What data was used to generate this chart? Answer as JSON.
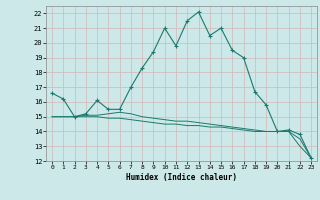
{
  "xlabel": "Humidex (Indice chaleur)",
  "xlim": [
    -0.5,
    23.5
  ],
  "ylim": [
    12,
    22.5
  ],
  "yticks": [
    12,
    13,
    14,
    15,
    16,
    17,
    18,
    19,
    20,
    21,
    22
  ],
  "xticks": [
    0,
    1,
    2,
    3,
    4,
    5,
    6,
    7,
    8,
    9,
    10,
    11,
    12,
    13,
    14,
    15,
    16,
    17,
    18,
    19,
    20,
    21,
    22,
    23
  ],
  "bg_color": "#cce8e8",
  "line_color": "#1a7a6e",
  "grid_color": "#c0d8d8",
  "line1_x": [
    0,
    1,
    2,
    3,
    4,
    5,
    6,
    7,
    8,
    9,
    10,
    11,
    12,
    13,
    14,
    15,
    16,
    17,
    18,
    19,
    20,
    21,
    22,
    23
  ],
  "line1_y": [
    16.6,
    16.2,
    15.0,
    15.2,
    16.1,
    15.5,
    15.5,
    17.0,
    18.3,
    19.4,
    21.0,
    19.8,
    21.5,
    22.1,
    20.5,
    21.0,
    19.5,
    19.0,
    16.7,
    15.8,
    14.0,
    14.1,
    13.8,
    12.2
  ],
  "line2_x": [
    0,
    1,
    2,
    3,
    4,
    5,
    6,
    7,
    8,
    9,
    10,
    11,
    12,
    13,
    14,
    15,
    16,
    17,
    18,
    19,
    20,
    21,
    22,
    23
  ],
  "line2_y": [
    15.0,
    15.0,
    15.0,
    15.0,
    15.0,
    14.9,
    14.9,
    14.8,
    14.7,
    14.6,
    14.5,
    14.5,
    14.4,
    14.4,
    14.3,
    14.3,
    14.2,
    14.1,
    14.0,
    14.0,
    14.0,
    14.0,
    13.0,
    12.2
  ],
  "line3_x": [
    0,
    1,
    2,
    3,
    4,
    5,
    6,
    7,
    8,
    9,
    10,
    11,
    12,
    13,
    14,
    15,
    16,
    17,
    18,
    19,
    20,
    21,
    22,
    23
  ],
  "line3_y": [
    15.0,
    15.0,
    15.0,
    15.1,
    15.1,
    15.2,
    15.3,
    15.2,
    15.0,
    14.9,
    14.8,
    14.7,
    14.7,
    14.6,
    14.5,
    14.4,
    14.3,
    14.2,
    14.1,
    14.0,
    14.0,
    14.0,
    13.5,
    12.2
  ]
}
